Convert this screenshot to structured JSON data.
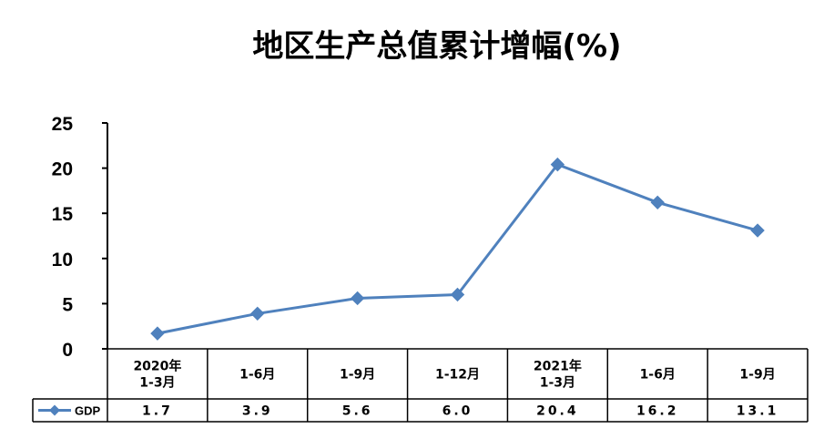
{
  "chart_data": {
    "type": "line",
    "title": "地区生产总值累计增幅(%)",
    "xlabel": "",
    "ylabel": "",
    "ylim": [
      0,
      25
    ],
    "yticks": [
      "0",
      "5",
      "10",
      "15",
      "20",
      "25"
    ],
    "categories": [
      [
        "2020年",
        "1-3月"
      ],
      [
        "1-6月"
      ],
      [
        "1-9月"
      ],
      [
        "1-12月"
      ],
      [
        "2021年",
        "1-3月"
      ],
      [
        "1-6月"
      ],
      [
        "1-9月"
      ]
    ],
    "series": [
      {
        "name": "GDP",
        "values": [
          1.7,
          3.9,
          5.6,
          6.0,
          20.4,
          16.2,
          13.1
        ],
        "labels": [
          "1.7",
          "3.9",
          "5.6",
          "6.0",
          "20.4",
          "16.2",
          "13.1"
        ],
        "color": "#4F81BD",
        "marker": "diamond"
      }
    ],
    "data_table": true,
    "grid": false
  }
}
